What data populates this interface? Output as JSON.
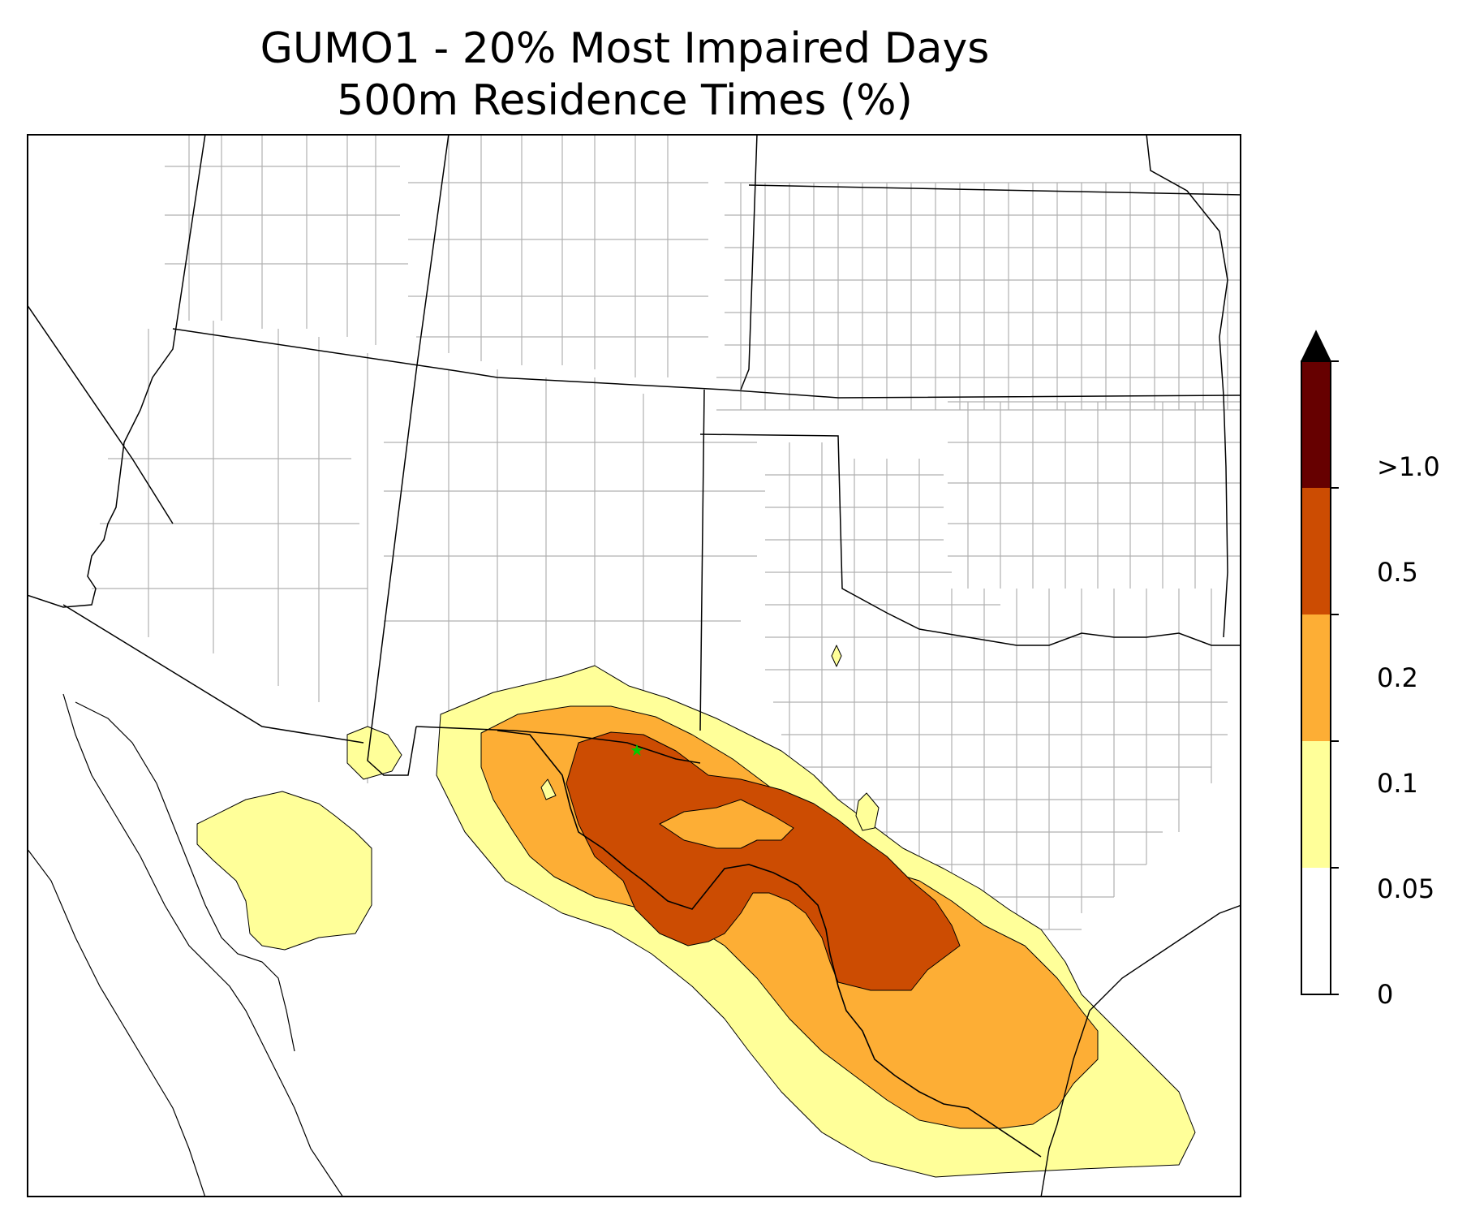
{
  "title": {
    "line1": "GUMO1 - 20% Most Impaired Days",
    "line2": "500m Residence Times (%)"
  },
  "site_marker": {
    "shape": "star",
    "color": "#00cc00"
  },
  "colorbar": {
    "extend": "max",
    "tick_labels": [
      "0",
      "0.05",
      "0.1",
      "0.2",
      "0.5",
      ">1.0"
    ],
    "levels": [
      {
        "range": "0 - 0.05",
        "color": "#ffffff"
      },
      {
        "range": "0.05 - 0.1",
        "color": "#ffff99"
      },
      {
        "range": "0.1 - 0.2",
        "color": "#fdae35"
      },
      {
        "range": "0.2 - 0.5",
        "color": "#cc4c02"
      },
      {
        "range": "0.5 - 1.0",
        "color": "#660000"
      },
      {
        "range": ">1.0",
        "color": "#000000"
      }
    ]
  }
}
